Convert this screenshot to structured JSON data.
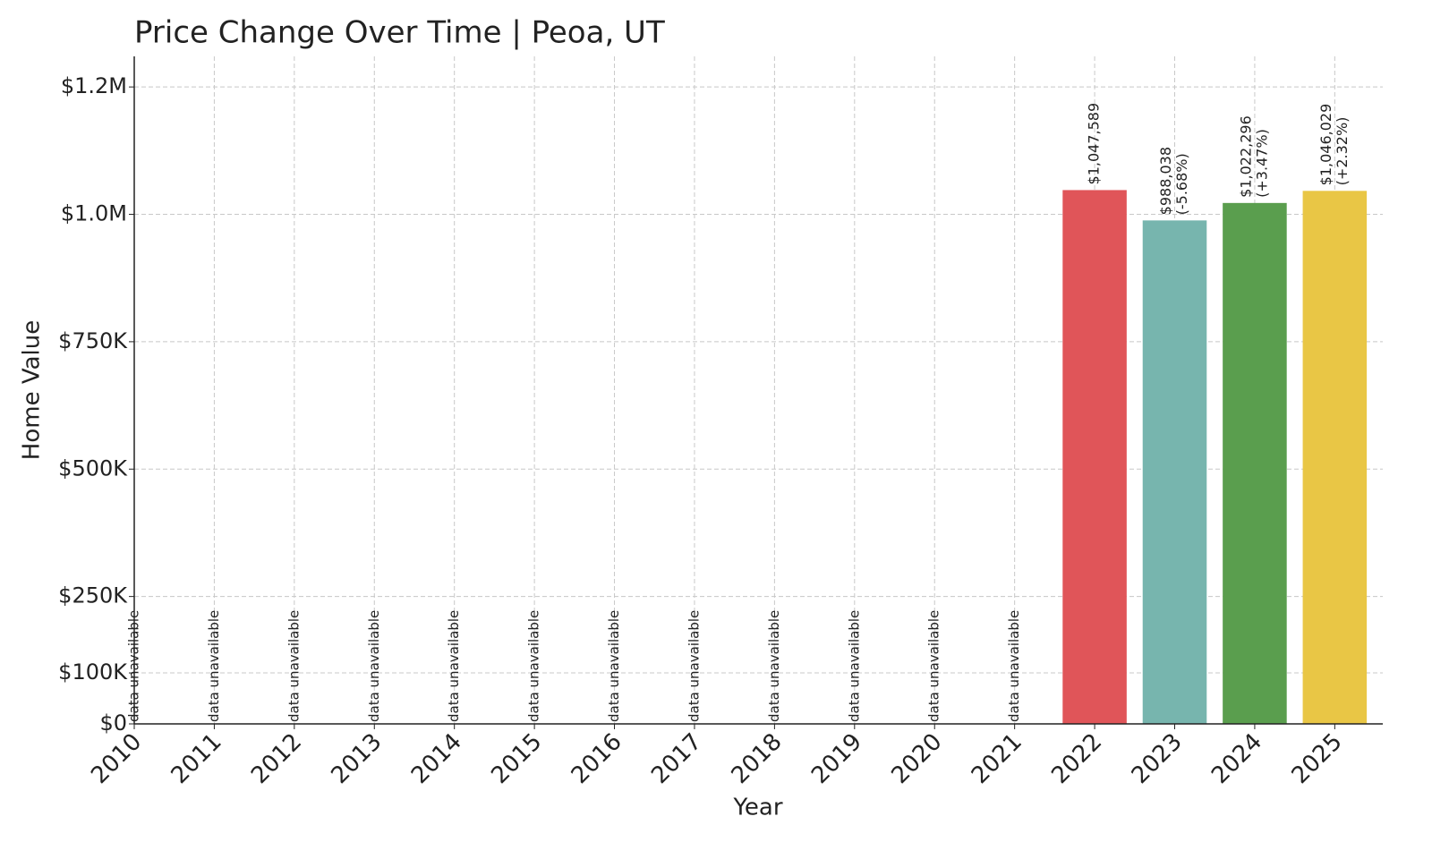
{
  "chart_data": {
    "type": "bar",
    "title": "Price Change Over Time | Peoa, UT",
    "xlabel": "Year",
    "ylabel": "Home Value",
    "x": [
      2010,
      2011,
      2012,
      2013,
      2014,
      2015,
      2016,
      2017,
      2018,
      2019,
      2020,
      2021,
      2022,
      2023,
      2024,
      2025
    ],
    "values": [
      null,
      null,
      null,
      null,
      null,
      null,
      null,
      null,
      null,
      null,
      null,
      null,
      1047589,
      988038,
      1022296,
      1046029
    ],
    "value_labels": [
      "data unavailable",
      "data unavailable",
      "data unavailable",
      "data unavailable",
      "data unavailable",
      "data unavailable",
      "data unavailable",
      "data unavailable",
      "data unavailable",
      "data unavailable",
      "data unavailable",
      "data unavailable",
      "$1,047,589",
      "$988,038",
      "$1,022,296",
      "$1,046,029"
    ],
    "change_labels": [
      null,
      null,
      null,
      null,
      null,
      null,
      null,
      null,
      null,
      null,
      null,
      null,
      null,
      "(-5.68%)",
      "(+3.47%)",
      "(+2.32%)"
    ],
    "colors": [
      null,
      null,
      null,
      null,
      null,
      null,
      null,
      null,
      null,
      null,
      null,
      null,
      "#e05559",
      "#77b5ae",
      "#5a9e4e",
      "#e9c645"
    ],
    "xlim": [
      2010,
      2025.6
    ],
    "xticks": [
      2010,
      2011,
      2012,
      2013,
      2014,
      2015,
      2016,
      2017,
      2018,
      2019,
      2020,
      2021,
      2022,
      2023,
      2024,
      2025
    ],
    "ylim": [
      0,
      1310000
    ],
    "yticks": [
      {
        "value": 0,
        "label": "$0"
      },
      {
        "value": 100000,
        "label": "$100K"
      },
      {
        "value": 250000,
        "label": "$250K"
      },
      {
        "value": 500000,
        "label": "$500K"
      },
      {
        "value": 750000,
        "label": "$750K"
      },
      {
        "value": 1000000,
        "label": "$1.0M"
      },
      {
        "value": 1250000,
        "label": "$1.2M"
      }
    ],
    "grid": true
  }
}
